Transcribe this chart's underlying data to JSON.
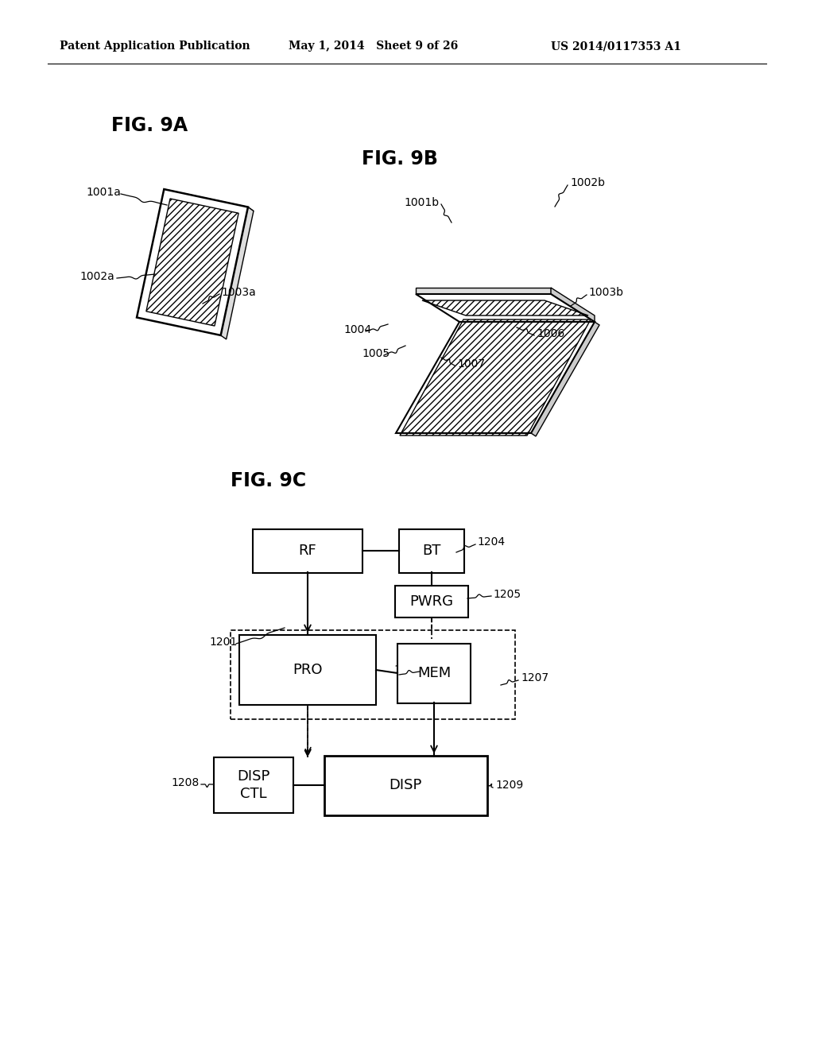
{
  "header_left": "Patent Application Publication",
  "header_mid": "May 1, 2014   Sheet 9 of 26",
  "header_right": "US 2014/0117353 A1",
  "fig9a_label": "FIG. 9A",
  "fig9b_label": "FIG. 9B",
  "fig9c_label": "FIG. 9C",
  "bg_color": "#ffffff",
  "line_color": "#000000",
  "label_fontsize": 10,
  "fig_label_fontsize": 17,
  "header_fontsize": 10
}
